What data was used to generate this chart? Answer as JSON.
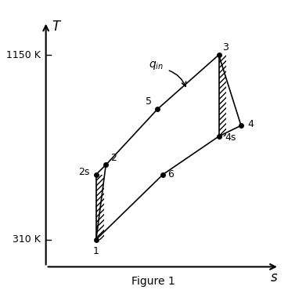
{
  "title": "Figure 1",
  "points": {
    "1": [
      1.8,
      1.0
    ],
    "2s": [
      1.8,
      3.4
    ],
    "2": [
      2.15,
      3.75
    ],
    "3": [
      6.2,
      7.8
    ],
    "4s": [
      6.2,
      4.8
    ],
    "4": [
      7.0,
      5.2
    ],
    "5": [
      4.0,
      5.8
    ],
    "6": [
      4.2,
      3.4
    ]
  },
  "background_color": "#ffffff",
  "line_color": "#000000",
  "point_color": "#000000",
  "point_size": 5,
  "xlim": [
    0,
    9.0
  ],
  "ylim": [
    0,
    9.5
  ]
}
